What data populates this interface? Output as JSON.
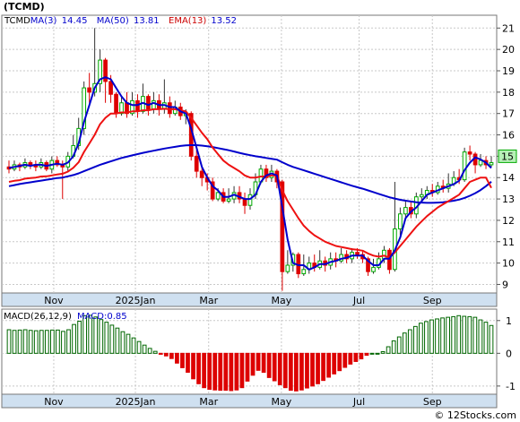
{
  "title": "(TCMD)",
  "watermark": "© 12Stocks.com",
  "chart_data": [
    {
      "type": "candlestick",
      "ticker": "TCMD",
      "legend": [
        {
          "label": "TCMD",
          "color": "#000000"
        },
        {
          "label": "MA(3)",
          "value": "14.45",
          "color": "#0000cc"
        },
        {
          "label": "MA(50)",
          "value": "13.81",
          "color": "#0000cc"
        },
        {
          "label": "EMA(13)",
          "value": "13.52",
          "color": "#cc0000"
        }
      ],
      "last_price": "15",
      "ylim": [
        8.6,
        21.6
      ],
      "yticks": [
        9,
        10,
        11,
        12,
        13,
        14,
        15,
        16,
        17,
        18,
        19,
        20,
        21
      ],
      "x_labels": [
        {
          "label": "Nov",
          "t": 0.105
        },
        {
          "label": "2025Jan",
          "t": 0.27
        },
        {
          "label": "Mar",
          "t": 0.418
        },
        {
          "label": "May",
          "t": 0.565
        },
        {
          "label": "Jul",
          "t": 0.722
        },
        {
          "label": "Sep",
          "t": 0.87
        }
      ],
      "candles": [
        [
          14.5,
          14.4,
          14.8,
          14.2
        ],
        [
          14.4,
          14.6,
          14.8,
          14.3
        ],
        [
          14.6,
          14.5,
          14.7,
          14.3
        ],
        [
          14.5,
          14.7,
          14.9,
          14.4
        ],
        [
          14.7,
          14.6,
          14.8,
          14.4
        ],
        [
          14.6,
          14.5,
          14.8,
          14.3
        ],
        [
          14.5,
          14.7,
          14.9,
          14.4
        ],
        [
          14.7,
          14.4,
          14.8,
          14.3
        ],
        [
          14.4,
          14.8,
          15.0,
          14.2
        ],
        [
          14.8,
          14.6,
          15.0,
          14.5
        ],
        [
          14.6,
          14.5,
          14.8,
          13.0
        ],
        [
          14.5,
          15.0,
          15.2,
          14.3
        ],
        [
          15.0,
          15.5,
          16.0,
          14.9
        ],
        [
          15.5,
          16.3,
          16.8,
          15.3
        ],
        [
          16.3,
          18.2,
          18.5,
          16.0
        ],
        [
          18.2,
          18.0,
          18.9,
          17.5
        ],
        [
          18.0,
          18.4,
          21.0,
          17.8
        ],
        [
          18.4,
          19.5,
          20.0,
          18.0
        ],
        [
          19.5,
          18.5,
          19.6,
          17.5
        ],
        [
          18.5,
          17.9,
          18.8,
          17.5
        ],
        [
          17.9,
          17.0,
          18.0,
          16.8
        ],
        [
          17.0,
          17.5,
          17.8,
          16.9
        ],
        [
          17.5,
          17.0,
          18.0,
          16.8
        ],
        [
          17.0,
          17.6,
          18.0,
          16.9
        ],
        [
          17.6,
          17.1,
          17.9,
          16.8
        ],
        [
          17.1,
          17.8,
          18.4,
          17.0
        ],
        [
          17.8,
          17.2,
          17.9,
          16.9
        ],
        [
          17.2,
          17.6,
          18.0,
          17.0
        ],
        [
          17.6,
          17.2,
          17.9,
          16.9
        ],
        [
          17.2,
          17.5,
          18.6,
          17.0
        ],
        [
          17.5,
          17.0,
          17.8,
          16.8
        ],
        [
          17.0,
          17.3,
          17.6,
          16.9
        ],
        [
          17.3,
          16.9,
          17.5,
          16.7
        ],
        [
          16.9,
          17.0,
          17.2,
          16.5
        ],
        [
          17.0,
          15.0,
          17.1,
          14.8
        ],
        [
          15.0,
          14.3,
          15.3,
          14.0
        ],
        [
          14.3,
          14.0,
          14.5,
          13.6
        ],
        [
          14.0,
          13.8,
          14.2,
          13.4
        ],
        [
          13.8,
          13.0,
          14.0,
          12.9
        ],
        [
          13.0,
          13.3,
          13.5,
          12.9
        ],
        [
          13.3,
          12.9,
          13.5,
          12.8
        ],
        [
          12.9,
          13.0,
          13.5,
          12.8
        ],
        [
          13.0,
          13.3,
          13.6,
          12.8
        ],
        [
          13.3,
          13.0,
          13.6,
          12.8
        ],
        [
          13.0,
          12.7,
          13.3,
          12.3
        ],
        [
          12.7,
          13.2,
          13.5,
          12.5
        ],
        [
          13.2,
          13.8,
          14.2,
          13.0
        ],
        [
          13.8,
          14.4,
          14.6,
          13.7
        ],
        [
          14.4,
          14.0,
          14.6,
          13.8
        ],
        [
          14.0,
          14.3,
          14.6,
          13.8
        ],
        [
          14.3,
          13.8,
          14.4,
          13.5
        ],
        [
          13.8,
          9.6,
          13.9,
          8.7
        ],
        [
          9.6,
          9.9,
          10.6,
          9.5
        ],
        [
          9.9,
          10.4,
          10.5,
          9.6
        ],
        [
          10.4,
          9.5,
          10.5,
          9.3
        ],
        [
          9.5,
          9.7,
          10.4,
          9.4
        ],
        [
          9.7,
          10.0,
          10.3,
          9.5
        ],
        [
          10.0,
          9.8,
          10.4,
          9.6
        ],
        [
          9.8,
          10.1,
          10.6,
          9.7
        ],
        [
          10.1,
          9.9,
          10.3,
          9.6
        ],
        [
          9.9,
          10.2,
          10.5,
          9.7
        ],
        [
          10.2,
          10.1,
          10.5,
          9.8
        ],
        [
          10.1,
          10.4,
          10.7,
          10.0
        ],
        [
          10.4,
          10.2,
          10.6,
          10.0
        ],
        [
          10.2,
          10.5,
          10.7,
          10.0
        ],
        [
          10.5,
          10.4,
          10.7,
          10.2
        ],
        [
          10.4,
          10.2,
          10.6,
          10.0
        ],
        [
          10.2,
          9.6,
          10.3,
          9.4
        ],
        [
          9.6,
          9.8,
          10.2,
          9.5
        ],
        [
          9.8,
          10.2,
          10.5,
          9.7
        ],
        [
          10.2,
          10.6,
          10.8,
          10.0
        ],
        [
          10.6,
          9.7,
          10.7,
          9.5
        ],
        [
          9.7,
          11.6,
          13.8,
          9.6
        ],
        [
          11.6,
          12.3,
          12.6,
          11.3
        ],
        [
          12.3,
          12.6,
          12.9,
          12.0
        ],
        [
          12.6,
          12.3,
          12.9,
          12.1
        ],
        [
          12.3,
          13.1,
          13.3,
          12.1
        ],
        [
          13.1,
          13.2,
          13.5,
          12.9
        ],
        [
          13.2,
          13.4,
          13.6,
          13.0
        ],
        [
          13.4,
          13.3,
          13.7,
          13.1
        ],
        [
          13.3,
          13.6,
          13.8,
          13.2
        ],
        [
          13.6,
          13.5,
          13.9,
          13.3
        ],
        [
          13.5,
          13.7,
          14.2,
          13.3
        ],
        [
          13.7,
          14.0,
          14.3,
          13.6
        ],
        [
          14.0,
          13.9,
          14.4,
          13.7
        ],
        [
          13.9,
          15.2,
          15.4,
          13.8
        ],
        [
          15.2,
          15.1,
          15.5,
          14.8
        ],
        [
          15.1,
          14.6,
          15.2,
          14.2
        ],
        [
          14.6,
          14.8,
          15.1,
          14.5
        ],
        [
          14.8,
          14.6,
          15.0,
          14.4
        ],
        [
          14.6,
          14.7,
          15.0,
          14.5
        ]
      ],
      "ma3": [
        14.45,
        14.5,
        14.55,
        14.6,
        14.55,
        14.6,
        14.6,
        14.55,
        14.6,
        14.65,
        14.6,
        14.7,
        15.0,
        15.6,
        16.6,
        17.4,
        18.2,
        18.6,
        18.7,
        18.6,
        18.2,
        17.8,
        17.5,
        17.4,
        17.4,
        17.5,
        17.4,
        17.5,
        17.4,
        17.4,
        17.3,
        17.3,
        17.1,
        17.0,
        16.3,
        15.4,
        14.5,
        14.0,
        13.6,
        13.4,
        13.1,
        13.1,
        13.2,
        13.1,
        13.0,
        13.0,
        13.2,
        13.8,
        14.1,
        14.2,
        14.1,
        12.6,
        11.1,
        10.0,
        9.9,
        9.9,
        9.7,
        9.8,
        9.95,
        9.95,
        10.05,
        10.1,
        10.2,
        10.25,
        10.35,
        10.35,
        10.35,
        10.1,
        9.9,
        9.9,
        10.2,
        10.2,
        10.6,
        11.2,
        12.1,
        12.4,
        12.6,
        12.9,
        13.2,
        13.3,
        13.4,
        13.5,
        13.6,
        13.7,
        13.85,
        14.35,
        14.7,
        14.95,
        14.85,
        14.7,
        14.45
      ],
      "ma50": [
        13.6,
        13.65,
        13.7,
        13.74,
        13.78,
        13.82,
        13.86,
        13.9,
        13.94,
        13.98,
        14.0,
        14.06,
        14.12,
        14.2,
        14.3,
        14.4,
        14.5,
        14.6,
        14.68,
        14.76,
        14.84,
        14.92,
        14.98,
        15.04,
        15.1,
        15.16,
        15.21,
        15.26,
        15.31,
        15.36,
        15.4,
        15.44,
        15.48,
        15.51,
        15.52,
        15.52,
        15.5,
        15.47,
        15.43,
        15.38,
        15.33,
        15.28,
        15.22,
        15.16,
        15.1,
        15.05,
        15.0,
        14.96,
        14.92,
        14.88,
        14.84,
        14.72,
        14.6,
        14.5,
        14.42,
        14.34,
        14.26,
        14.18,
        14.1,
        14.02,
        13.94,
        13.86,
        13.78,
        13.7,
        13.62,
        13.55,
        13.48,
        13.4,
        13.32,
        13.24,
        13.16,
        13.08,
        13.02,
        12.96,
        12.92,
        12.88,
        12.85,
        12.83,
        12.82,
        12.82,
        12.83,
        12.85,
        12.88,
        12.92,
        12.97,
        13.05,
        13.15,
        13.27,
        13.42,
        13.6,
        13.81
      ],
      "ema13": [
        13.8,
        13.85,
        13.88,
        13.95,
        13.98,
        14.0,
        14.05,
        14.06,
        14.1,
        14.15,
        14.18,
        14.28,
        14.46,
        14.72,
        15.2,
        15.6,
        16.0,
        16.5,
        16.8,
        17.0,
        17.0,
        17.05,
        17.05,
        17.1,
        17.1,
        17.15,
        17.15,
        17.2,
        17.2,
        17.22,
        17.2,
        17.2,
        17.15,
        17.1,
        16.8,
        16.45,
        16.1,
        15.8,
        15.4,
        15.1,
        14.8,
        14.6,
        14.45,
        14.3,
        14.1,
        14.0,
        14.0,
        14.05,
        14.05,
        14.1,
        14.1,
        13.4,
        12.9,
        12.5,
        12.1,
        11.75,
        11.5,
        11.3,
        11.15,
        11.0,
        10.9,
        10.8,
        10.75,
        10.7,
        10.65,
        10.62,
        10.58,
        10.45,
        10.35,
        10.3,
        10.35,
        10.25,
        10.5,
        10.8,
        11.1,
        11.4,
        11.7,
        11.95,
        12.2,
        12.4,
        12.6,
        12.75,
        12.9,
        13.05,
        13.2,
        13.5,
        13.8,
        13.9,
        14.0,
        14.0,
        13.52
      ],
      "colors": {
        "up": "#00aa00",
        "down": "#dd0000",
        "ma3": "#0000cc",
        "ma50": "#0000cc",
        "ema13": "#ee1111"
      }
    },
    {
      "type": "bar",
      "title": "MACD(26,12,9)",
      "value_label": "MACD:0.85",
      "ylim": [
        -1.25,
        1.35
      ],
      "yticks": [
        1,
        0,
        -1
      ],
      "values": [
        0.72,
        0.7,
        0.71,
        0.72,
        0.7,
        0.69,
        0.7,
        0.7,
        0.71,
        0.71,
        0.67,
        0.72,
        0.88,
        0.98,
        1.15,
        1.16,
        1.11,
        1.03,
        0.95,
        0.86,
        0.77,
        0.66,
        0.58,
        0.47,
        0.36,
        0.25,
        0.15,
        0.06,
        -0.03,
        -0.08,
        -0.16,
        -0.3,
        -0.44,
        -0.58,
        -0.78,
        -0.93,
        -1.05,
        -1.1,
        -1.12,
        -1.13,
        -1.13,
        -1.14,
        -1.12,
        -1.05,
        -0.85,
        -0.67,
        -0.52,
        -0.58,
        -0.74,
        -0.84,
        -0.96,
        -1.05,
        -1.13,
        -1.15,
        -1.12,
        -1.06,
        -1.0,
        -0.93,
        -0.83,
        -0.73,
        -0.63,
        -0.53,
        -0.43,
        -0.33,
        -0.25,
        -0.17,
        -0.06,
        0.0,
        0.0,
        0.05,
        0.2,
        0.38,
        0.5,
        0.62,
        0.72,
        0.82,
        0.92,
        0.97,
        1.02,
        1.05,
        1.08,
        1.1,
        1.12,
        1.15,
        1.13,
        1.12,
        1.1,
        1.02,
        0.95,
        0.85
      ],
      "colors": {
        "positive": "#006600",
        "negative": "#dd0000"
      }
    }
  ]
}
